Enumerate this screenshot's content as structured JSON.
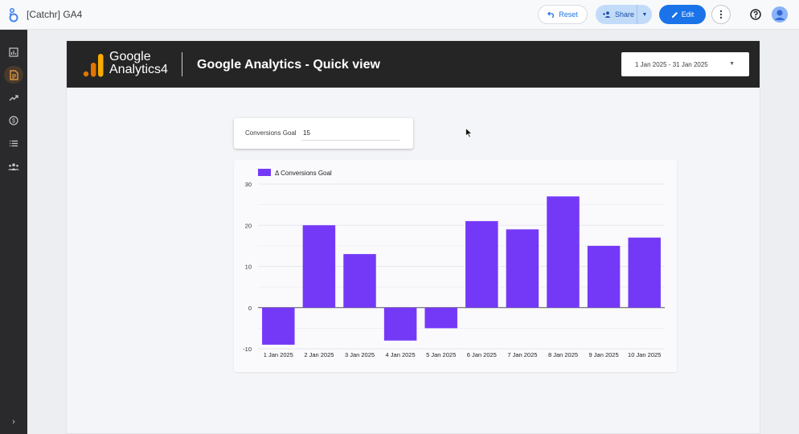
{
  "app": {
    "title": "[Catchr] GA4",
    "reset_label": "Reset",
    "share_label": "Share",
    "edit_label": "Edit",
    "icons": [
      "looker-studio-logo-icon",
      "undo-icon",
      "add-person-icon",
      "chevron-down-icon",
      "pencil-icon",
      "more-vert-icon",
      "help-icon",
      "account-avatar-icon"
    ]
  },
  "rail": {
    "items": [
      {
        "name": "rail-item-chart",
        "icon": "bar-chart-icon",
        "active": false
      },
      {
        "name": "rail-item-report",
        "icon": "document-icon",
        "active": true
      },
      {
        "name": "rail-item-trend",
        "icon": "trending-up-icon",
        "active": false
      },
      {
        "name": "rail-item-billing",
        "icon": "dollar-circle-icon",
        "active": false
      },
      {
        "name": "rail-item-list",
        "icon": "list-icon",
        "active": false
      },
      {
        "name": "rail-item-people",
        "icon": "people-icon",
        "active": false
      }
    ],
    "expand_icon": "chevron-right-icon"
  },
  "report": {
    "logo_line1": "Google",
    "logo_line2": "Analytics",
    "logo_num": "4",
    "title": "Google Analytics - Quick view",
    "date_range": "1 Jan 2025 - 31 Jan 2025",
    "goal_label": "Conversions Goal",
    "goal_value": "15"
  },
  "colors": {
    "bar": "#7439f7",
    "header_bg": "#252526",
    "accent_blue": "#1a73e8",
    "logo_orange": "#f9ab00",
    "logo_dark_orange": "#e37400"
  },
  "chart_data": {
    "type": "bar",
    "legend": [
      "Δ Conversions Goal"
    ],
    "legend_position": "top-left",
    "categories": [
      "1 Jan 2025",
      "2 Jan 2025",
      "3 Jan 2025",
      "4 Jan 2025",
      "5 Jan 2025",
      "6 Jan 2025",
      "7 Jan 2025",
      "8 Jan 2025",
      "9 Jan 2025",
      "10 Jan 2025"
    ],
    "series": [
      {
        "name": "Δ Conversions Goal",
        "values": [
          -9,
          20,
          13,
          -8,
          -5,
          21,
          19,
          27,
          15,
          17
        ]
      }
    ],
    "yticks": [
      30,
      20,
      10,
      0,
      -10
    ],
    "ylim": [
      -10,
      30
    ],
    "grid": true
  }
}
